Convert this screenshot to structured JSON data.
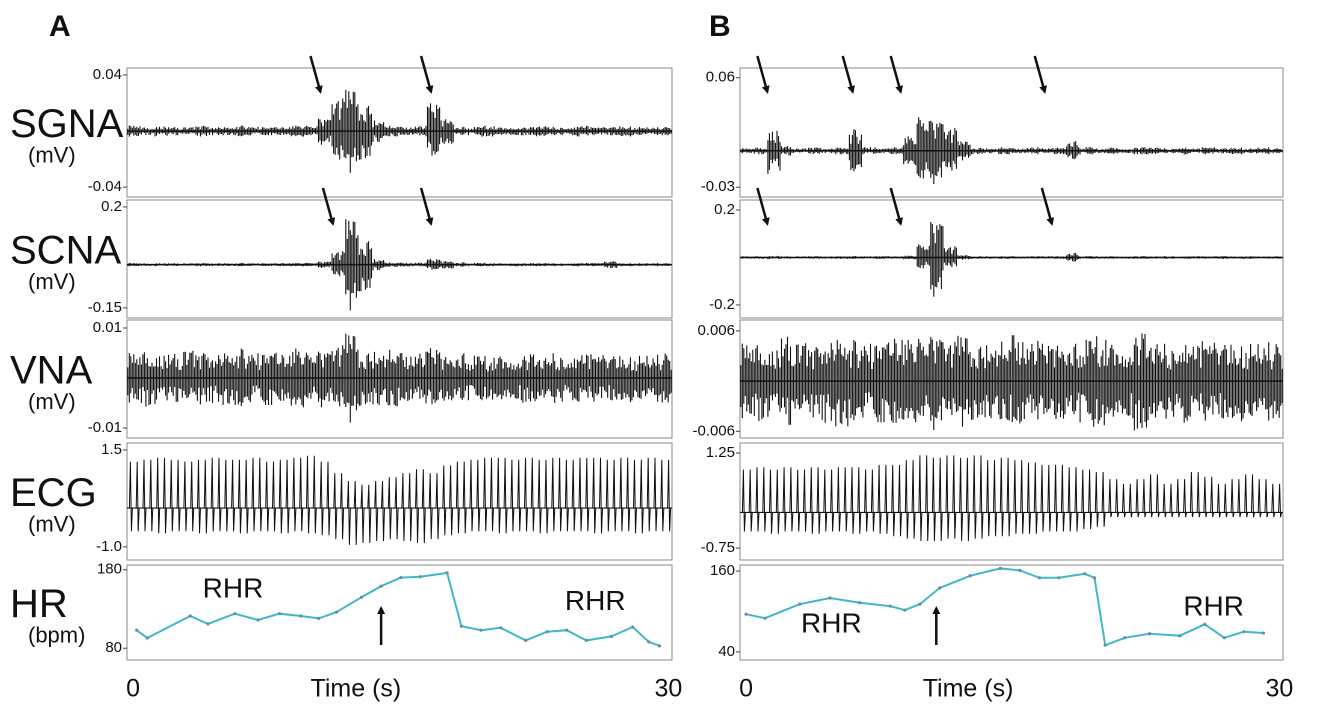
{
  "chart_data": [
    {
      "type": "envelope",
      "panel_label": "A",
      "ylabel": "SGNA",
      "yunit": "(mV)",
      "xlim": [
        -0.34,
        30.2
      ],
      "ylim": [
        -0.047,
        0.045
      ],
      "yticks": [
        0.04,
        -0.04
      ],
      "arrows": [
        10.5,
        16.7
      ],
      "values": [
        0.004,
        0.003,
        0.004,
        0.003,
        0.003,
        0.004,
        0.003,
        0.003,
        0.004,
        0.003,
        0.003,
        0.003,
        0.004,
        0.004,
        0.01,
        0.025,
        0.03,
        0.022,
        0.008,
        0.004,
        0.003,
        0.004,
        0.02,
        0.01,
        0.003,
        0.003,
        0.004,
        0.003,
        0.003,
        0.003,
        0.004,
        0.003,
        0.003,
        0.004,
        0.003,
        0.003,
        0.004,
        0.003,
        0.003,
        0.003
      ]
    },
    {
      "type": "envelope",
      "ylabel": "SCNA",
      "yunit": "(mV)",
      "xlim": [
        -0.34,
        30.2
      ],
      "ylim": [
        -0.185,
        0.224
      ],
      "yticks": [
        0.2,
        -0.15
      ],
      "arrows": [
        11.2,
        16.7
      ],
      "values": [
        0.006,
        0.005,
        0.006,
        0.005,
        0.005,
        0.006,
        0.005,
        0.005,
        0.006,
        0.005,
        0.005,
        0.006,
        0.006,
        0.007,
        0.012,
        0.05,
        0.16,
        0.1,
        0.02,
        0.008,
        0.007,
        0.008,
        0.02,
        0.015,
        0.008,
        0.006,
        0.006,
        0.005,
        0.006,
        0.005,
        0.006,
        0.005,
        0.005,
        0.006,
        0.006,
        0.012,
        0.006,
        0.005,
        0.006,
        0.005
      ]
    },
    {
      "type": "envelope",
      "ylabel": "VNA",
      "yunit": "(mV)",
      "xlim": [
        -0.34,
        30.2
      ],
      "ylim": [
        -0.012,
        0.0116
      ],
      "yticks": [
        0.01,
        -0.01
      ],
      "values": [
        0.005,
        0.006,
        0.0055,
        0.005,
        0.006,
        0.0055,
        0.005,
        0.0055,
        0.006,
        0.005,
        0.0055,
        0.005,
        0.006,
        0.0055,
        0.006,
        0.007,
        0.009,
        0.006,
        0.0055,
        0.006,
        0.005,
        0.0055,
        0.006,
        0.005,
        0.005,
        0.0045,
        0.0045,
        0.005,
        0.0045,
        0.005,
        0.0045,
        0.005,
        0.0045,
        0.005,
        0.005,
        0.0045,
        0.005,
        0.0045,
        0.005,
        0.005
      ]
    },
    {
      "type": "ecg",
      "ylabel": "ECG",
      "yunit": "(mV)",
      "xlim": [
        -0.34,
        30.2
      ],
      "ylim": [
        -1.34,
        1.68
      ],
      "yticks": [
        1.5,
        {
          "value": -1,
          "label": "-1.0"
        }
      ],
      "values": [
        1.2,
        1.25,
        1.3,
        1.25,
        1.2,
        1.25,
        1.3,
        1.25,
        1.25,
        1.3,
        1.2,
        1.25,
        1.3,
        1.35,
        1.2,
        0.9,
        0.7,
        0.6,
        0.7,
        0.8,
        0.9,
        1.0,
        0.9,
        1.1,
        1.2,
        1.25,
        1.3,
        1.3,
        1.25,
        1.3,
        1.25,
        1.3,
        1.25,
        1.3,
        1.3,
        1.25,
        1.3,
        1.25,
        1.3,
        1.25
      ],
      "troughs": [
        -0.6,
        -0.6,
        -0.65,
        -0.6,
        -0.6,
        -0.65,
        -0.6,
        -0.6,
        -0.65,
        -0.6,
        -0.6,
        -0.65,
        -0.6,
        -0.65,
        -0.7,
        -0.8,
        -0.95,
        -0.9,
        -0.85,
        -0.8,
        -0.85,
        -0.9,
        -0.8,
        -0.7,
        -0.65,
        -0.6,
        -0.6,
        -0.65,
        -0.6,
        -0.6,
        -0.65,
        -0.6,
        -0.6,
        -0.6,
        -0.65,
        -0.6,
        -0.6,
        -0.65,
        -0.6,
        -0.6
      ]
    },
    {
      "type": "line",
      "ylabel": "HR",
      "yunit": "(bpm)",
      "xlim": [
        -0.34,
        30.2
      ],
      "ylim": [
        65,
        186
      ],
      "yticks": [
        180,
        80
      ],
      "xticks": [
        0,
        30
      ],
      "xlabel": "Time (s)",
      "color": "#3fb8c8",
      "up_arrows": [
        13.9
      ],
      "annotations": [
        {
          "text": "RHR",
          "x": 5.6,
          "y": 154
        },
        {
          "text": "RHR",
          "x": 25.9,
          "y": 138
        }
      ],
      "x": [
        0.2,
        0.8,
        3.2,
        4.2,
        5.7,
        7,
        8.2,
        9.4,
        10.4,
        11.4,
        12.8,
        13.9,
        15,
        16.1,
        17.6,
        18.4,
        19.5,
        20.6,
        22,
        23.2,
        24.3,
        25.4,
        26.8,
        28,
        28.9,
        29.5
      ],
      "values": [
        103,
        93,
        121,
        111,
        124,
        116,
        124,
        121,
        118,
        126,
        145,
        159,
        170,
        171,
        176,
        108,
        103,
        106,
        90,
        101,
        103,
        90,
        95,
        107,
        88,
        83
      ]
    },
    {
      "type": "envelope",
      "panel_label": "B",
      "xlim": [
        -0.34,
        30.2
      ],
      "ylim": [
        -0.038,
        0.068
      ],
      "yticks": [
        0.06,
        -0.03
      ],
      "arrows": [
        1.2,
        6.0,
        8.7,
        16.8
      ],
      "values": [
        0.002,
        0.003,
        0.02,
        0.004,
        0.002,
        0.003,
        0.002,
        0.003,
        0.018,
        0.003,
        0.002,
        0.003,
        0.012,
        0.03,
        0.028,
        0.02,
        0.008,
        0.003,
        0.002,
        0.003,
        0.002,
        0.003,
        0.002,
        0.003,
        0.008,
        0.003,
        0.002,
        0.003,
        0.002,
        0.003,
        0.003,
        0.002,
        0.003,
        0.002,
        0.003,
        0.002,
        0.003,
        0.002,
        0.003,
        0.002
      ]
    },
    {
      "type": "envelope",
      "xlim": [
        -0.34,
        30.2
      ],
      "ylim": [
        -0.255,
        0.242
      ],
      "yticks": [
        0.2,
        -0.2
      ],
      "arrows": [
        1.2,
        8.7,
        17.2
      ],
      "values": [
        0.005,
        0.006,
        0.008,
        0.005,
        0.005,
        0.006,
        0.005,
        0.006,
        0.006,
        0.005,
        0.006,
        0.005,
        0.008,
        0.06,
        0.17,
        0.05,
        0.01,
        0.006,
        0.005,
        0.006,
        0.005,
        0.006,
        0.005,
        0.006,
        0.02,
        0.006,
        0.005,
        0.006,
        0.005,
        0.006,
        0.005,
        0.006,
        0.005,
        0.006,
        0.005,
        0.006,
        0.005,
        0.006,
        0.005,
        0.005
      ]
    },
    {
      "type": "envelope",
      "xlim": [
        -0.34,
        30.2
      ],
      "ylim": [
        -0.0068,
        0.0073
      ],
      "yticks": [
        0.006,
        -0.006
      ],
      "values": [
        0.0045,
        0.005,
        0.0045,
        0.0055,
        0.005,
        0.0045,
        0.005,
        0.0055,
        0.005,
        0.0045,
        0.005,
        0.0055,
        0.005,
        0.0055,
        0.006,
        0.005,
        0.0055,
        0.005,
        0.0045,
        0.005,
        0.0055,
        0.005,
        0.0045,
        0.005,
        0.0045,
        0.005,
        0.0055,
        0.005,
        0.0045,
        0.006,
        0.005,
        0.0045,
        0.005,
        0.0045,
        0.005,
        0.0045,
        0.005,
        0.0045,
        0.005,
        0.0045
      ]
    },
    {
      "type": "ecg",
      "xlim": [
        -0.34,
        30.2
      ],
      "ylim": [
        -1.0,
        1.46
      ],
      "yticks": [
        1.25,
        -0.75
      ],
      "values": [
        0.9,
        0.95,
        0.9,
        0.95,
        0.9,
        0.95,
        0.9,
        0.95,
        0.95,
        0.9,
        1.0,
        1.0,
        1.1,
        1.2,
        1.15,
        1.2,
        1.15,
        1.2,
        1.1,
        1.15,
        1.1,
        1.05,
        1.0,
        1.0,
        0.95,
        0.9,
        0.85,
        0.7,
        0.6,
        0.7,
        0.8,
        0.6,
        0.7,
        0.85,
        0.75,
        0.6,
        0.7,
        0.8,
        0.7,
        0.6
      ],
      "troughs": [
        -0.4,
        -0.4,
        -0.45,
        -0.4,
        -0.4,
        -0.45,
        -0.4,
        -0.4,
        -0.45,
        -0.4,
        -0.45,
        -0.5,
        -0.55,
        -0.6,
        -0.6,
        -0.55,
        -0.6,
        -0.55,
        -0.5,
        -0.5,
        -0.45,
        -0.45,
        -0.4,
        -0.4,
        -0.4,
        -0.35,
        -0.3,
        -0.1,
        -0.1,
        -0.1,
        -0.1,
        -0.1,
        -0.1,
        -0.1,
        -0.1,
        -0.1,
        -0.1,
        -0.1,
        -0.1,
        -0.1
      ]
    },
    {
      "type": "line",
      "xlim": [
        -0.34,
        30.2
      ],
      "ylim": [
        28,
        169
      ],
      "yticks": [
        160,
        40
      ],
      "xticks": [
        0,
        30
      ],
      "xlabel": "Time (s)",
      "color": "#3fb8c8",
      "up_arrows": [
        10.7
      ],
      "annotations": [
        {
          "text": "RHR",
          "x": 4.8,
          "y": 80
        },
        {
          "text": "RHR",
          "x": 26.3,
          "y": 105
        }
      ],
      "x": [
        0,
        1.07,
        3.03,
        4.72,
        6.4,
        8.1,
        8.93,
        9.78,
        10.9,
        12.6,
        14.3,
        15.4,
        16.5,
        17.6,
        19.05,
        19.6,
        20.2,
        21.3,
        22.7,
        24.4,
        25.8,
        26.9,
        28.0,
        29.1
      ],
      "values": [
        96,
        90,
        111,
        120,
        113,
        108,
        102,
        111,
        135,
        153,
        164,
        161,
        150,
        150,
        156,
        150,
        50,
        61,
        67,
        64,
        81,
        61,
        70,
        68
      ]
    }
  ]
}
